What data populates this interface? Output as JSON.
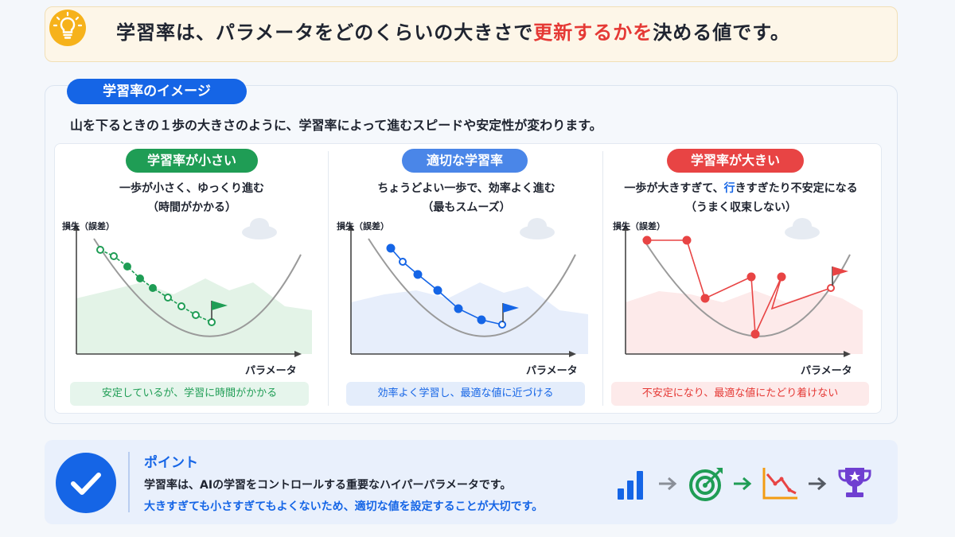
{
  "header": {
    "icon": "lightbulb-icon",
    "text_before": "学習率は、パラメータをどのくらいの大きさで",
    "text_highlight": "更新するかを",
    "text_after": "決める値です。",
    "highlight_color": "#e53935"
  },
  "panel": {
    "tag": "学習率のイメージ",
    "description": "山を下るときの１歩の大きさのように、学習率によって進むスピードや安定性が変わります。"
  },
  "columns": [
    {
      "pill": "学習率が小さい",
      "color": "#1f9d55",
      "line1": "一歩が小さく、ゆっくり進む",
      "line2": "（時間がかかる）",
      "ylabel": "損失（誤差）",
      "xlabel": "パラメータ",
      "note": "安定しているが、学習に時間がかかる",
      "note_bg": "#e6f5ec",
      "note_color": "#1f9d55"
    },
    {
      "pill": "適切な学習率",
      "color": "#4a86e8",
      "line1": "ちょうどよい一歩で、効率よく進む",
      "line2": "（最もスムーズ）",
      "ylabel": "損失（誤差）",
      "xlabel": "パラメータ",
      "note": "効率よく学習し、最適な値に近づける",
      "note_bg": "#e4edfb",
      "note_color": "#1565e6"
    },
    {
      "pill": "学習率が大きい",
      "color": "#e84444",
      "line1_before": "一歩が大きすぎて、",
      "line1_highlight": "行",
      "line1_after": "きすぎたり不安定になる",
      "line2": "（うまく収束しない）",
      "ylabel": "損失（誤差）",
      "xlabel": "パラメータ",
      "note": "不安定になり、最適な値にたどり着けない",
      "note_bg": "#fdeaea",
      "note_color": "#e53935"
    }
  ],
  "point": {
    "title": "ポイント",
    "line1": "学習率は、AIの学習をコントロールする重要なハイパーパラメータです。",
    "line2": "大きすぎても小さすぎてもよくないため、適切な値を設定することが大切です。",
    "flow_icons": [
      "bar-chart-icon",
      "arrow-right-icon",
      "target-icon",
      "arrow-right-icon",
      "descending-line-chart-icon",
      "arrow-right-icon",
      "trophy-icon"
    ]
  }
}
